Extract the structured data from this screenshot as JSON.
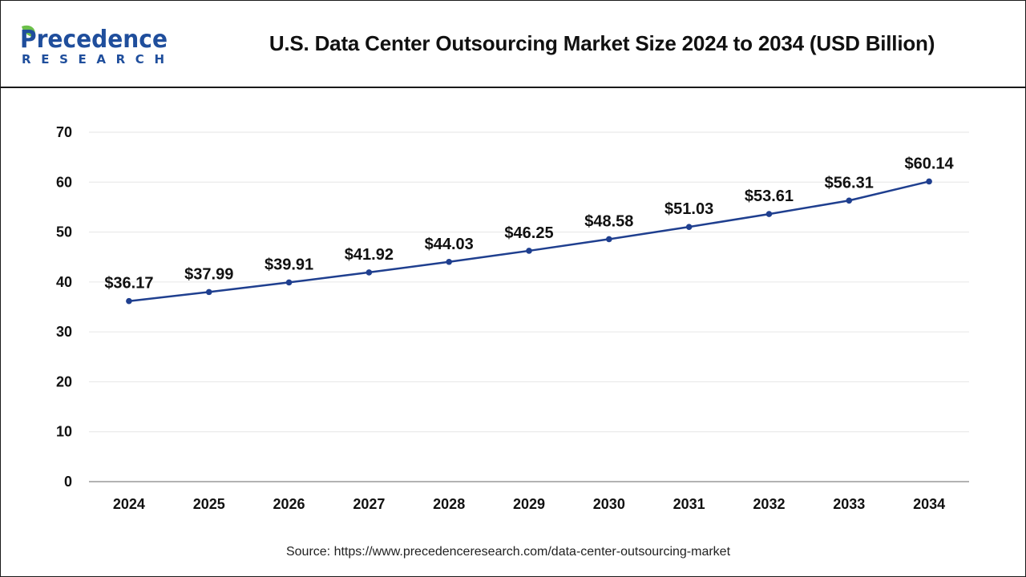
{
  "header": {
    "brand_main": "Precedence",
    "brand_sub": "RESEARCH",
    "title": "U.S. Data Center Outsourcing Market Size 2024 to 2034 (USD Billion)"
  },
  "source": "Source: https://www.precedenceresearch.com/data-center-outsourcing-market",
  "colors": {
    "line": "#1f3f8f",
    "grid": "#e6e6e6",
    "text": "#111111",
    "brand_blue": "#1f4e9c",
    "brand_green": "#6cc04a"
  },
  "chart_data": {
    "type": "line",
    "title": "U.S. Data Center Outsourcing Market Size 2024 to 2034 (USD Billion)",
    "xlabel": "",
    "ylabel": "",
    "categories": [
      "2024",
      "2025",
      "2026",
      "2027",
      "2028",
      "2029",
      "2030",
      "2031",
      "2032",
      "2033",
      "2034"
    ],
    "values": [
      36.17,
      37.99,
      39.91,
      41.92,
      44.03,
      46.25,
      48.58,
      51.03,
      53.61,
      56.31,
      60.14
    ],
    "labels": [
      "$36.17",
      "$37.99",
      "$39.91",
      "$41.92",
      "$44.03",
      "$46.25",
      "$48.58",
      "$51.03",
      "$53.61",
      "$56.31",
      "$60.14"
    ],
    "yticks": [
      "0",
      "10",
      "20",
      "30",
      "40",
      "50",
      "60",
      "70"
    ],
    "ylim": [
      0,
      70
    ],
    "grid": true,
    "legend": "none"
  }
}
